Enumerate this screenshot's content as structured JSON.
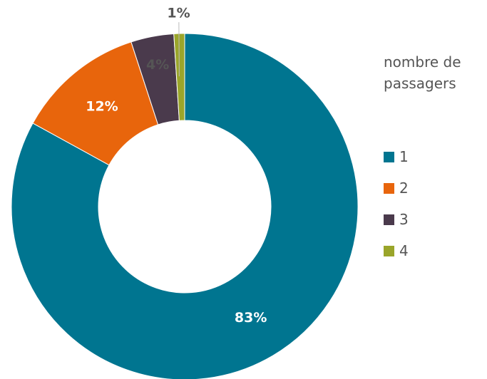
{
  "chart_data": {
    "type": "donut",
    "legend_title": "nombre de passagers",
    "categories": [
      "1",
      "2",
      "3",
      "4"
    ],
    "values": [
      83,
      12,
      4,
      1
    ],
    "value_labels": [
      "83%",
      "12%",
      "4%",
      "1%"
    ],
    "colors": [
      "#007590",
      "#e8650c",
      "#4a3a4c",
      "#9aa52a"
    ]
  }
}
